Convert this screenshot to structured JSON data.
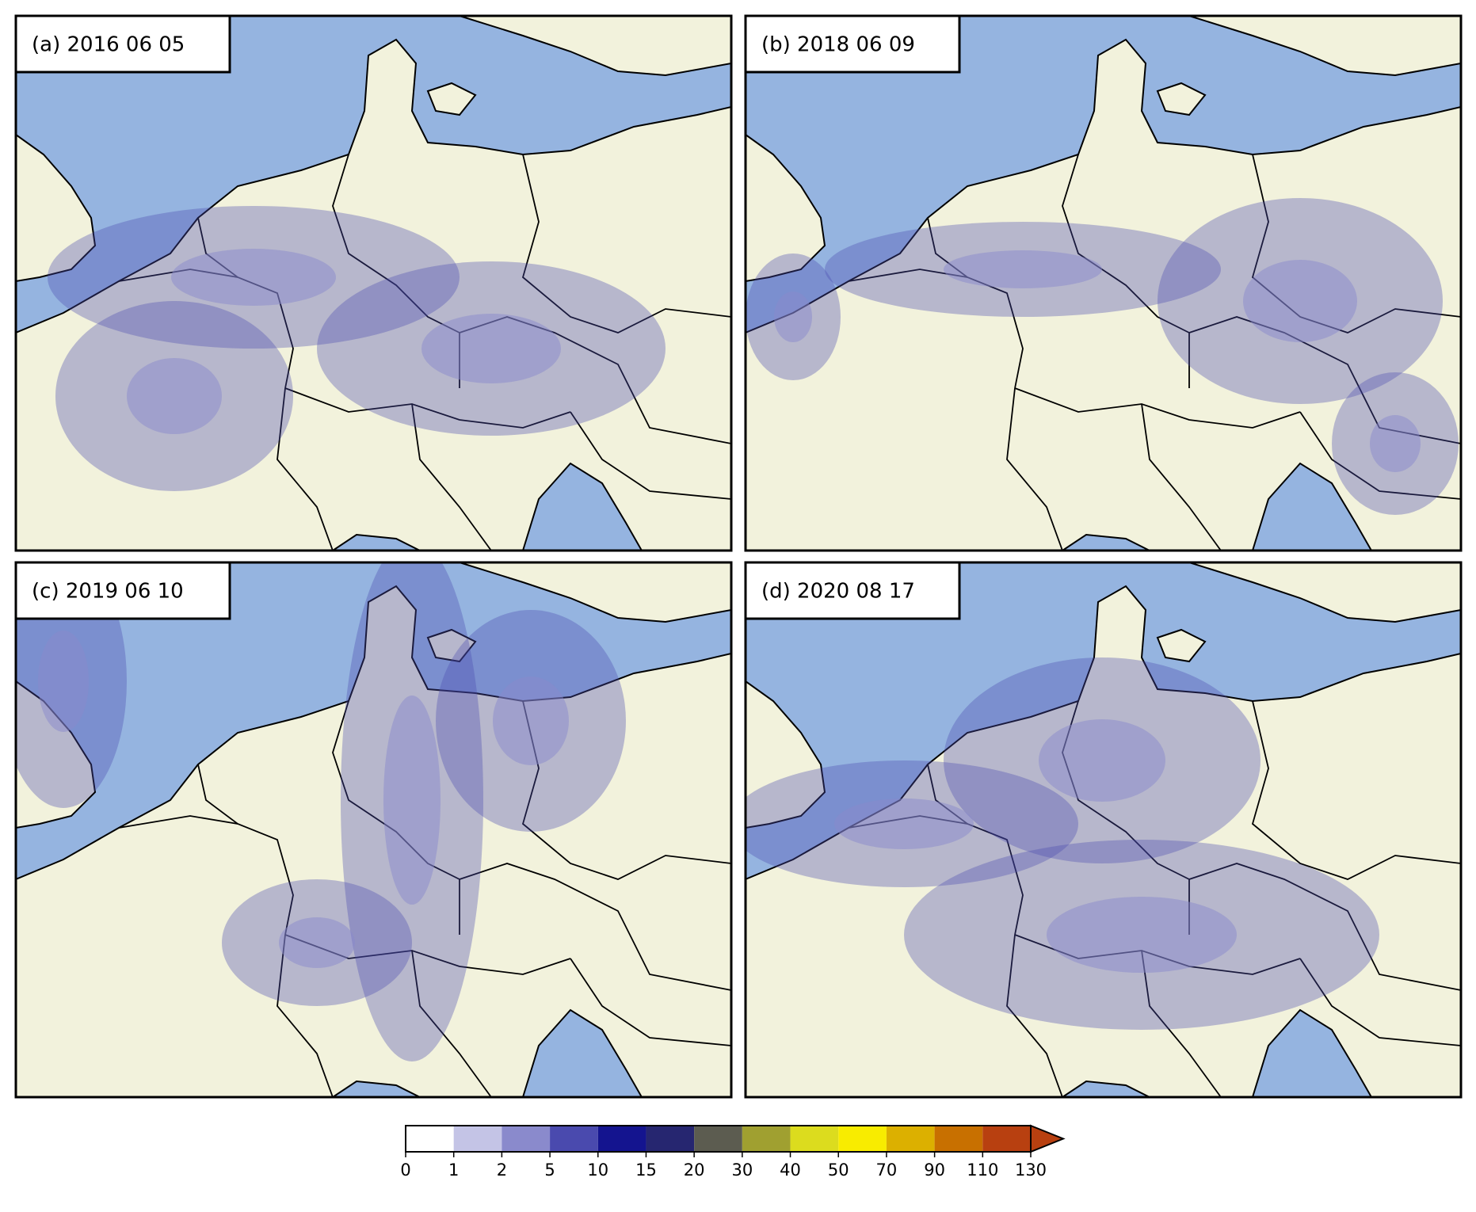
{
  "panels": [
    {
      "label": "(a) 2016 06 05"
    },
    {
      "label": "(b) 2018 06 09"
    },
    {
      "label": "(c) 2019 06 10"
    },
    {
      "label": "(d) 2020 08 17"
    }
  ],
  "colorbar": {
    "boundaries": [
      0,
      1,
      2,
      5,
      10,
      15,
      20,
      30,
      40,
      50,
      70,
      90,
      110,
      130
    ],
    "colors": [
      "#ffffff",
      "#c4c4e6",
      "#8a8acc",
      "#4a4aae",
      "#14148f",
      "#262670",
      "#5c5c50",
      "#a0a030",
      "#dcdc1e",
      "#f8ec00",
      "#dcb000",
      "#c87000",
      "#b84010"
    ],
    "extend": "max"
  }
}
